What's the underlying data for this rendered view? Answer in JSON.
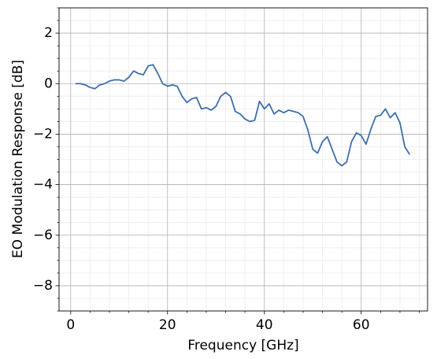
{
  "chart_data": {
    "type": "line",
    "xlabel": "Frequency [GHz]",
    "ylabel": "EO Modulation Response [dB]",
    "color": "#3d6fae",
    "x": [
      1,
      2,
      3,
      4,
      5,
      6,
      7,
      8,
      9,
      10,
      11,
      12,
      13,
      14,
      15,
      16,
      17,
      18,
      19,
      20,
      21,
      22,
      23,
      24,
      25,
      26,
      27,
      28,
      29,
      30,
      31,
      32,
      33,
      34,
      35,
      36,
      37,
      38,
      39,
      40,
      41,
      42,
      43,
      44,
      45,
      46,
      47,
      48,
      49,
      50,
      51,
      52,
      53,
      54,
      55,
      56,
      57,
      58,
      59,
      60,
      61,
      62,
      63,
      64,
      65,
      66,
      67,
      68,
      69,
      70
    ],
    "values": [
      0.0,
      0.0,
      -0.05,
      -0.15,
      -0.2,
      -0.05,
      0.0,
      0.1,
      0.15,
      0.15,
      0.1,
      0.25,
      0.5,
      0.4,
      0.35,
      0.7,
      0.75,
      0.4,
      0.0,
      -0.1,
      -0.05,
      -0.1,
      -0.5,
      -0.75,
      -0.6,
      -0.55,
      -1.0,
      -0.95,
      -1.05,
      -0.9,
      -0.5,
      -0.35,
      -0.5,
      -1.1,
      -1.2,
      -1.4,
      -1.5,
      -1.45,
      -0.7,
      -1.0,
      -0.8,
      -1.2,
      -1.05,
      -1.15,
      -1.05,
      -1.1,
      -1.15,
      -1.3,
      -1.85,
      -2.6,
      -2.75,
      -2.3,
      -2.1,
      -2.6,
      -3.1,
      -3.25,
      -3.1,
      -2.3,
      -1.95,
      -2.05,
      -2.4,
      -1.8,
      -1.3,
      -1.25,
      -1.0,
      -1.35,
      -1.15,
      -1.55,
      -2.5,
      -2.8
    ],
    "xlim": [
      -2.4,
      73.7
    ],
    "ylim": [
      -9,
      3
    ],
    "xticks": [
      0,
      20,
      40,
      60
    ],
    "yticks": [
      {
        "value": -8,
        "label": "−8"
      },
      {
        "value": -6,
        "label": "−6"
      },
      {
        "value": -4,
        "label": "−4"
      },
      {
        "value": -2,
        "label": "−2"
      },
      0,
      2
    ],
    "grid": true,
    "minor_grid": true,
    "x_minor_divisions": 5,
    "y_minor_divisions": 4
  }
}
